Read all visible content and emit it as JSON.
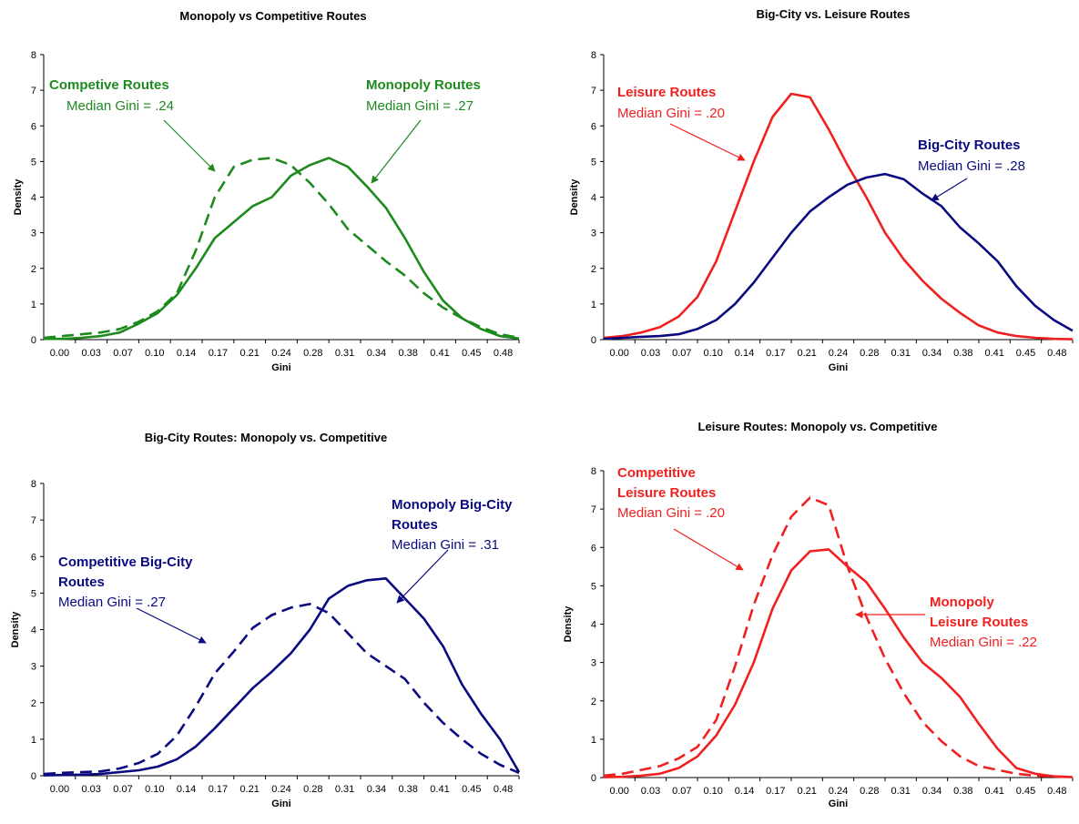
{
  "colors": {
    "green": "#1e8a1e",
    "red": "#f02020",
    "navy": "#0a0a80"
  },
  "chart_data": [
    {
      "type": "line",
      "title": "Monopoly vs Competitive Routes",
      "xlabel": "Gini",
      "ylabel": "Density",
      "ylim": [
        0,
        8
      ],
      "xlim": [
        0,
        0.5
      ],
      "grid": false,
      "x_ticks": [
        "0.00",
        "0.03",
        "0.07",
        "0.10",
        "0.14",
        "0.17",
        "0.21",
        "0.24",
        "0.28",
        "0.31",
        "0.34",
        "0.38",
        "0.41",
        "0.45",
        "0.48"
      ],
      "y_ticks": [
        "0",
        "1",
        "2",
        "3",
        "4",
        "5",
        "6",
        "7",
        "8"
      ],
      "color": "green",
      "series": [
        {
          "name": "Monopoly Routes",
          "style": "solid",
          "x": [
            0.0,
            0.02,
            0.04,
            0.06,
            0.08,
            0.1,
            0.12,
            0.14,
            0.16,
            0.18,
            0.2,
            0.22,
            0.24,
            0.26,
            0.28,
            0.3,
            0.32,
            0.34,
            0.36,
            0.38,
            0.4,
            0.42,
            0.44,
            0.46,
            0.48,
            0.5
          ],
          "y": [
            0.02,
            0.02,
            0.05,
            0.1,
            0.2,
            0.45,
            0.75,
            1.25,
            2.0,
            2.85,
            3.3,
            3.75,
            4.0,
            4.6,
            4.9,
            5.1,
            4.85,
            4.3,
            3.7,
            2.85,
            1.9,
            1.1,
            0.6,
            0.3,
            0.1,
            0.03
          ]
        },
        {
          "name": "Competive Routes",
          "style": "dashed",
          "x": [
            0.0,
            0.02,
            0.04,
            0.06,
            0.08,
            0.1,
            0.12,
            0.14,
            0.16,
            0.18,
            0.2,
            0.22,
            0.24,
            0.26,
            0.28,
            0.3,
            0.32,
            0.34,
            0.36,
            0.38,
            0.4,
            0.42,
            0.44,
            0.46,
            0.48,
            0.5
          ],
          "y": [
            0.05,
            0.1,
            0.15,
            0.2,
            0.3,
            0.5,
            0.8,
            1.3,
            2.5,
            4.0,
            4.85,
            5.05,
            5.1,
            4.9,
            4.4,
            3.8,
            3.1,
            2.65,
            2.2,
            1.8,
            1.3,
            0.9,
            0.6,
            0.35,
            0.15,
            0.05
          ]
        }
      ],
      "annotations": [
        {
          "bold": "Competive Routes",
          "normal": "Median Gini = .24"
        },
        {
          "bold": "Monopoly Routes",
          "normal": "Median Gini = .27"
        }
      ]
    },
    {
      "type": "line",
      "title": "Big-City  vs. Leisure Routes",
      "xlabel": "Gini",
      "ylabel": "Density",
      "ylim": [
        0,
        8
      ],
      "xlim": [
        0,
        0.5
      ],
      "grid": false,
      "x_ticks": [
        "0.00",
        "0.03",
        "0.07",
        "0.10",
        "0.14",
        "0.17",
        "0.21",
        "0.24",
        "0.28",
        "0.31",
        "0.34",
        "0.38",
        "0.41",
        "0.45",
        "0.48"
      ],
      "y_ticks": [
        "0",
        "1",
        "2",
        "3",
        "4",
        "5",
        "6",
        "7",
        "8"
      ],
      "series": [
        {
          "name": "Leisure Routes",
          "style": "solid",
          "color": "red",
          "x": [
            0.0,
            0.02,
            0.04,
            0.06,
            0.08,
            0.1,
            0.12,
            0.14,
            0.16,
            0.18,
            0.2,
            0.22,
            0.24,
            0.26,
            0.28,
            0.3,
            0.32,
            0.34,
            0.36,
            0.38,
            0.4,
            0.42,
            0.44,
            0.46,
            0.48,
            0.5
          ],
          "y": [
            0.05,
            0.1,
            0.2,
            0.35,
            0.65,
            1.2,
            2.2,
            3.6,
            5.0,
            6.25,
            6.9,
            6.8,
            5.9,
            4.9,
            4.0,
            3.0,
            2.25,
            1.65,
            1.15,
            0.75,
            0.4,
            0.2,
            0.1,
            0.05,
            0.02,
            0.01
          ]
        },
        {
          "name": "Big-City Routes",
          "style": "solid",
          "color": "navy",
          "x": [
            0.0,
            0.02,
            0.04,
            0.06,
            0.08,
            0.1,
            0.12,
            0.14,
            0.16,
            0.18,
            0.2,
            0.22,
            0.24,
            0.26,
            0.28,
            0.3,
            0.32,
            0.34,
            0.36,
            0.38,
            0.4,
            0.42,
            0.44,
            0.46,
            0.48,
            0.5
          ],
          "y": [
            0.02,
            0.05,
            0.08,
            0.1,
            0.15,
            0.3,
            0.55,
            1.0,
            1.6,
            2.3,
            3.0,
            3.6,
            4.0,
            4.35,
            4.55,
            4.65,
            4.5,
            4.1,
            3.75,
            3.15,
            2.7,
            2.2,
            1.5,
            0.95,
            0.55,
            0.25
          ]
        }
      ],
      "annotations": [
        {
          "bold": "Leisure Routes",
          "normal": "Median Gini = .20"
        },
        {
          "bold": "Big-City Routes",
          "normal": "Median Gini = .28"
        }
      ]
    },
    {
      "type": "line",
      "title": "Big-City Routes: Monopoly vs. Competitive",
      "xlabel": "Gini",
      "ylabel": "Density",
      "ylim": [
        0,
        8
      ],
      "xlim": [
        0,
        0.5
      ],
      "grid": false,
      "x_ticks": [
        "0.00",
        "0.03",
        "0.07",
        "0.10",
        "0.14",
        "0.17",
        "0.21",
        "0.24",
        "0.28",
        "0.31",
        "0.34",
        "0.38",
        "0.41",
        "0.45",
        "0.48"
      ],
      "y_ticks": [
        "0",
        "1",
        "2",
        "3",
        "4",
        "5",
        "6",
        "7",
        "8"
      ],
      "color": "navy",
      "series": [
        {
          "name": "Monopoly Big-City Routes",
          "style": "solid",
          "x": [
            0.0,
            0.02,
            0.04,
            0.06,
            0.08,
            0.1,
            0.12,
            0.14,
            0.16,
            0.18,
            0.2,
            0.22,
            0.24,
            0.26,
            0.28,
            0.3,
            0.32,
            0.34,
            0.36,
            0.38,
            0.4,
            0.42,
            0.44,
            0.46,
            0.48,
            0.5
          ],
          "y": [
            0.01,
            0.02,
            0.03,
            0.05,
            0.1,
            0.15,
            0.25,
            0.45,
            0.8,
            1.3,
            1.85,
            2.4,
            2.85,
            3.35,
            4.0,
            4.85,
            5.2,
            5.35,
            5.4,
            4.85,
            4.3,
            3.55,
            2.5,
            1.7,
            1.0,
            0.1
          ]
        },
        {
          "name": "Competitive Big-City Routes",
          "style": "dashed",
          "x": [
            0.0,
            0.02,
            0.04,
            0.06,
            0.08,
            0.1,
            0.12,
            0.14,
            0.16,
            0.18,
            0.2,
            0.22,
            0.24,
            0.26,
            0.28,
            0.3,
            0.32,
            0.34,
            0.36,
            0.38,
            0.4,
            0.42,
            0.44,
            0.46,
            0.48,
            0.5
          ],
          "y": [
            0.05,
            0.08,
            0.1,
            0.12,
            0.2,
            0.35,
            0.6,
            1.1,
            1.9,
            2.8,
            3.4,
            4.05,
            4.4,
            4.6,
            4.7,
            4.45,
            3.9,
            3.35,
            3.0,
            2.65,
            2.0,
            1.45,
            1.0,
            0.6,
            0.3,
            0.08
          ]
        }
      ],
      "annotations": [
        {
          "bold1": "Competitive Big-City",
          "bold2": "Routes",
          "normal": "Median Gini = .27"
        },
        {
          "bold1": "Monopoly Big-City",
          "bold2": "Routes",
          "normal": "Median Gini = .31"
        }
      ]
    },
    {
      "type": "line",
      "title": "Leisure Routes: Monopoly vs. Competitive",
      "xlabel": "Gini",
      "ylabel": "Density",
      "ylim": [
        0,
        8
      ],
      "xlim": [
        0,
        0.5
      ],
      "grid": false,
      "x_ticks": [
        "0.00",
        "0.03",
        "0.07",
        "0.10",
        "0.14",
        "0.17",
        "0.21",
        "0.24",
        "0.28",
        "0.31",
        "0.34",
        "0.38",
        "0.41",
        "0.45",
        "0.48"
      ],
      "y_ticks": [
        "0",
        "1",
        "2",
        "3",
        "4",
        "5",
        "6",
        "7",
        "8"
      ],
      "color": "red",
      "series": [
        {
          "name": "Monopoly Leisure Routes",
          "style": "solid",
          "x": [
            0.0,
            0.02,
            0.04,
            0.06,
            0.08,
            0.1,
            0.12,
            0.14,
            0.16,
            0.18,
            0.2,
            0.22,
            0.24,
            0.26,
            0.28,
            0.3,
            0.32,
            0.34,
            0.36,
            0.38,
            0.4,
            0.42,
            0.44,
            0.46,
            0.48,
            0.5
          ],
          "y": [
            0.01,
            0.02,
            0.05,
            0.1,
            0.25,
            0.55,
            1.1,
            1.9,
            3.0,
            4.4,
            5.4,
            5.9,
            5.95,
            5.5,
            5.1,
            4.4,
            3.65,
            3.0,
            2.6,
            2.1,
            1.4,
            0.75,
            0.25,
            0.1,
            0.03,
            0.01
          ]
        },
        {
          "name": "Competitive Leisure Routes",
          "style": "dashed",
          "x": [
            0.0,
            0.02,
            0.04,
            0.06,
            0.08,
            0.1,
            0.12,
            0.14,
            0.16,
            0.18,
            0.2,
            0.22,
            0.24,
            0.26,
            0.28,
            0.3,
            0.32,
            0.34,
            0.36,
            0.38,
            0.4,
            0.42,
            0.44,
            0.46,
            0.48,
            0.5
          ],
          "y": [
            0.05,
            0.1,
            0.2,
            0.3,
            0.5,
            0.8,
            1.5,
            2.9,
            4.5,
            5.8,
            6.8,
            7.3,
            7.1,
            5.5,
            4.2,
            3.1,
            2.2,
            1.45,
            0.95,
            0.55,
            0.3,
            0.2,
            0.1,
            0.05,
            0.03,
            0.01
          ]
        }
      ],
      "annotations": [
        {
          "bold1": "Competitive",
          "bold2": "Leisure Routes",
          "normal": "Median Gini = .20"
        },
        {
          "bold1": "Monopoly",
          "bold2": "Leisure Routes",
          "normal": "Median Gini = .22"
        }
      ]
    }
  ]
}
